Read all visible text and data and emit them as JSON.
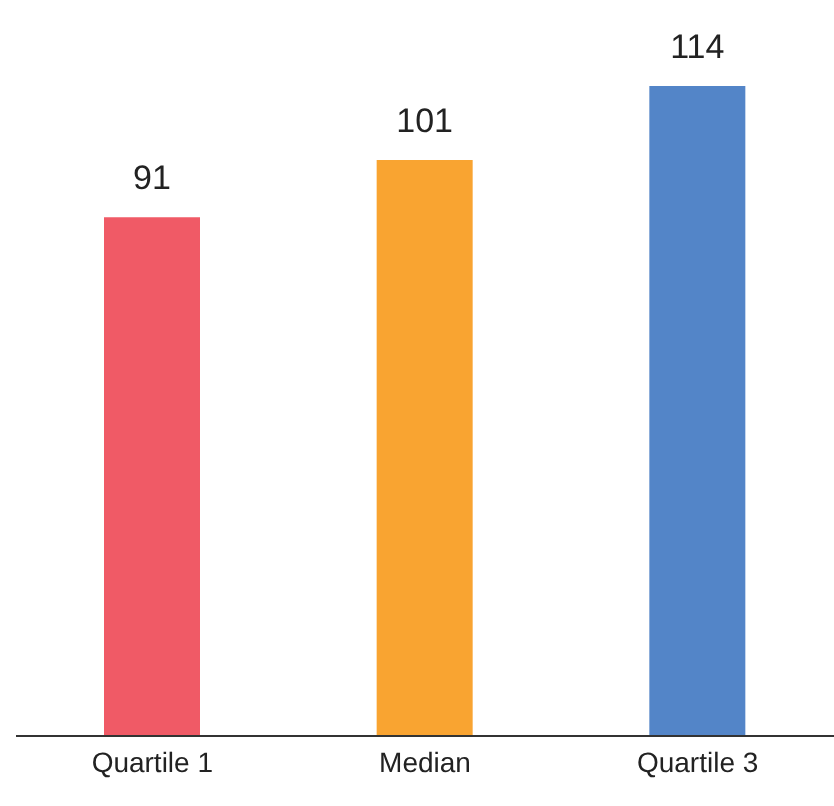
{
  "chart_data": {
    "type": "bar",
    "categories": [
      "Quartile 1",
      "Median",
      "Quartile 3"
    ],
    "values": [
      91,
      101,
      114
    ],
    "colors": [
      "#f05a66",
      "#f9a431",
      "#5385c8"
    ],
    "data_labels": true
  }
}
